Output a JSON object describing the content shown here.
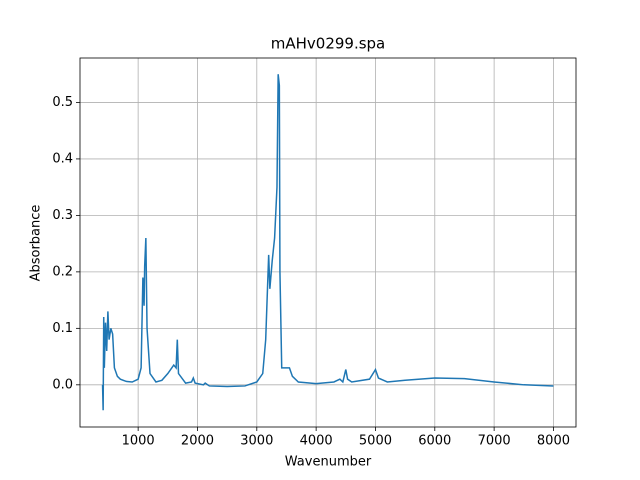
{
  "chart_data": {
    "type": "line",
    "title": "mAHv0299.spa",
    "x_label": "Wavenumber",
    "y_label": "Absorbance",
    "x": [
      400,
      410,
      420,
      430,
      450,
      470,
      490,
      510,
      540,
      570,
      600,
      650,
      700,
      800,
      900,
      1000,
      1050,
      1080,
      1100,
      1110,
      1130,
      1150,
      1200,
      1300,
      1400,
      1500,
      1600,
      1640,
      1660,
      1680,
      1800,
      1900,
      1930,
      1960,
      2100,
      2130,
      2200,
      2500,
      2800,
      3000,
      3100,
      3150,
      3200,
      3220,
      3260,
      3300,
      3340,
      3360,
      3380,
      3390,
      3420,
      3480,
      3550,
      3600,
      3700,
      4000,
      4300,
      4400,
      4450,
      4500,
      4530,
      4600,
      4900,
      5000,
      5050,
      5200,
      5500,
      6000,
      6500,
      7000,
      7500,
      8000
    ],
    "series": [
      {
        "name": "mAHv0299.spa",
        "color": "#1f77b4",
        "values": [
          0.0,
          -0.045,
          0.12,
          0.03,
          0.11,
          0.06,
          0.13,
          0.08,
          0.1,
          0.09,
          0.03,
          0.015,
          0.01,
          0.006,
          0.005,
          0.01,
          0.03,
          0.19,
          0.14,
          0.21,
          0.26,
          0.1,
          0.02,
          0.005,
          0.008,
          0.02,
          0.035,
          0.03,
          0.08,
          0.02,
          0.003,
          0.005,
          0.012,
          0.003,
          0.0,
          0.003,
          -0.002,
          -0.003,
          -0.002,
          0.005,
          0.02,
          0.08,
          0.23,
          0.17,
          0.22,
          0.26,
          0.35,
          0.55,
          0.53,
          0.2,
          0.03,
          0.03,
          0.03,
          0.015,
          0.005,
          0.002,
          0.005,
          0.01,
          0.005,
          0.027,
          0.01,
          0.005,
          0.01,
          0.027,
          0.012,
          0.005,
          0.008,
          0.012,
          0.011,
          0.005,
          0.0,
          -0.002
        ]
      }
    ],
    "xlim": [
      20,
      8380
    ],
    "ylim": [
      -0.0747,
      0.5787
    ],
    "xticks": [
      1000,
      2000,
      3000,
      4000,
      5000,
      6000,
      7000,
      8000
    ],
    "yticks": [
      {
        "value": 0,
        "label": "0.0"
      },
      0.1,
      0.2,
      0.3,
      0.4,
      0.5
    ],
    "grid": true
  }
}
